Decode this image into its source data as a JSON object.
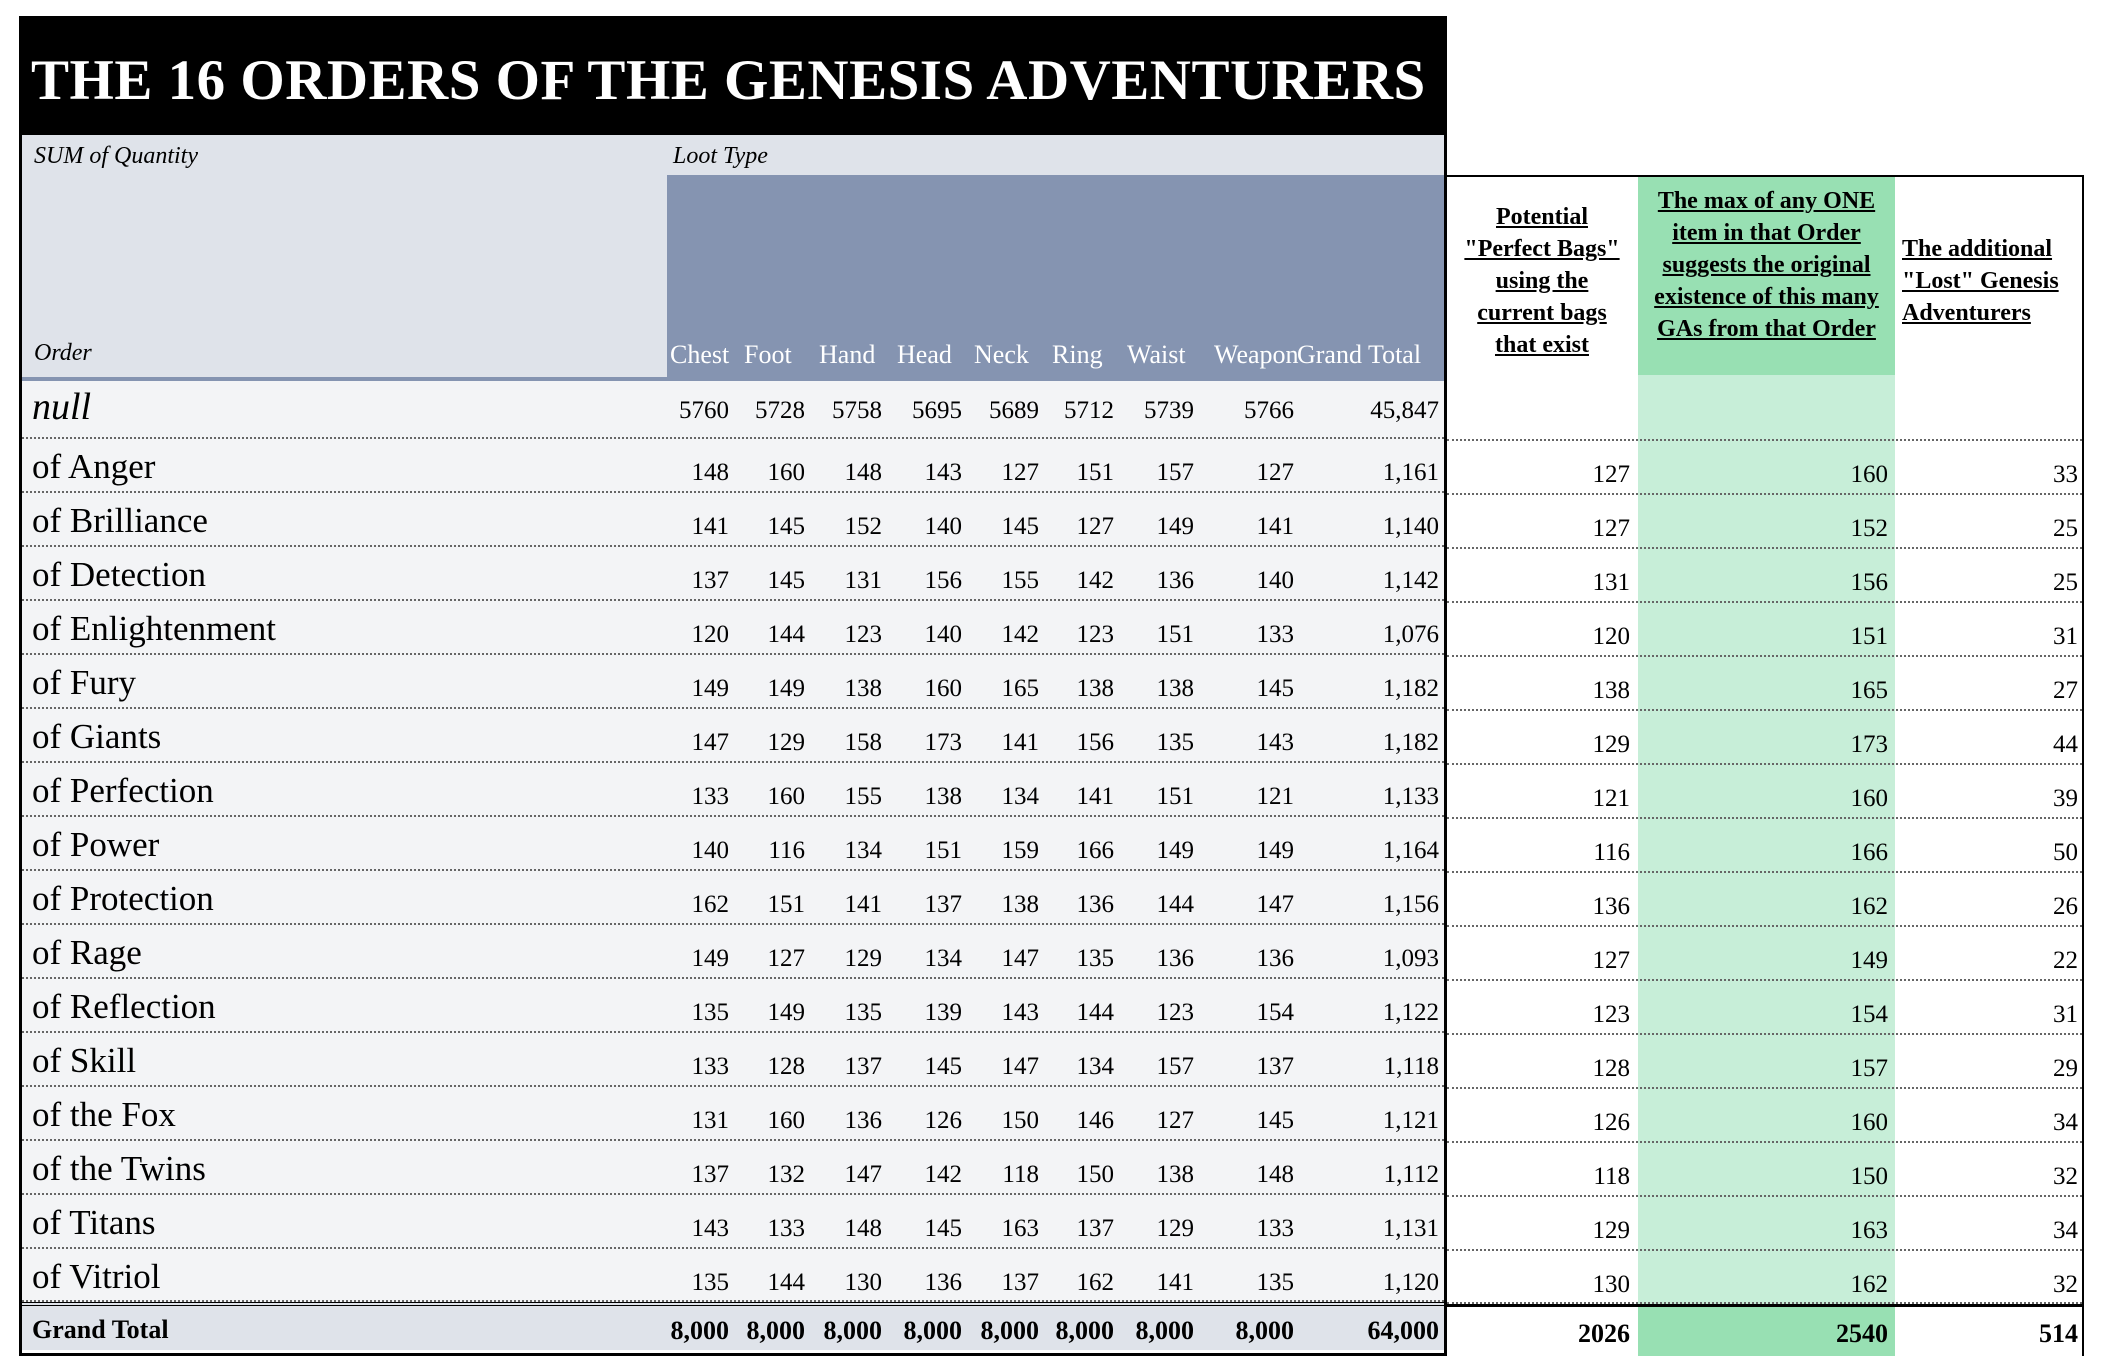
{
  "title": "THE 16 ORDERS OF THE GENESIS ADVENTURERS",
  "pivot": {
    "values_label": "SUM of Quantity",
    "columns_label": "Loot Type",
    "rows_label": "Order",
    "columns": [
      "Chest",
      "Foot",
      "Hand",
      "Head",
      "Neck",
      "Ring",
      "Waist",
      "Weapon",
      "Grand Total"
    ],
    "rows": [
      {
        "order": "null",
        "values": [
          "5760",
          "5728",
          "5758",
          "5695",
          "5689",
          "5712",
          "5739",
          "5766",
          "45,847"
        ]
      },
      {
        "order": "of Anger",
        "values": [
          "148",
          "160",
          "148",
          "143",
          "127",
          "151",
          "157",
          "127",
          "1,161"
        ]
      },
      {
        "order": "of Brilliance",
        "values": [
          "141",
          "145",
          "152",
          "140",
          "145",
          "127",
          "149",
          "141",
          "1,140"
        ]
      },
      {
        "order": "of Detection",
        "values": [
          "137",
          "145",
          "131",
          "156",
          "155",
          "142",
          "136",
          "140",
          "1,142"
        ]
      },
      {
        "order": "of Enlightenment",
        "values": [
          "120",
          "144",
          "123",
          "140",
          "142",
          "123",
          "151",
          "133",
          "1,076"
        ]
      },
      {
        "order": "of Fury",
        "values": [
          "149",
          "149",
          "138",
          "160",
          "165",
          "138",
          "138",
          "145",
          "1,182"
        ]
      },
      {
        "order": "of Giants",
        "values": [
          "147",
          "129",
          "158",
          "173",
          "141",
          "156",
          "135",
          "143",
          "1,182"
        ]
      },
      {
        "order": "of Perfection",
        "values": [
          "133",
          "160",
          "155",
          "138",
          "134",
          "141",
          "151",
          "121",
          "1,133"
        ]
      },
      {
        "order": "of Power",
        "values": [
          "140",
          "116",
          "134",
          "151",
          "159",
          "166",
          "149",
          "149",
          "1,164"
        ]
      },
      {
        "order": "of Protection",
        "values": [
          "162",
          "151",
          "141",
          "137",
          "138",
          "136",
          "144",
          "147",
          "1,156"
        ]
      },
      {
        "order": "of Rage",
        "values": [
          "149",
          "127",
          "129",
          "134",
          "147",
          "135",
          "136",
          "136",
          "1,093"
        ]
      },
      {
        "order": "of Reflection",
        "values": [
          "135",
          "149",
          "135",
          "139",
          "143",
          "144",
          "123",
          "154",
          "1,122"
        ]
      },
      {
        "order": "of Skill",
        "values": [
          "133",
          "128",
          "137",
          "145",
          "147",
          "134",
          "157",
          "137",
          "1,118"
        ]
      },
      {
        "order": "of the Fox",
        "values": [
          "131",
          "160",
          "136",
          "126",
          "150",
          "146",
          "127",
          "145",
          "1,121"
        ]
      },
      {
        "order": "of the Twins",
        "values": [
          "137",
          "132",
          "147",
          "142",
          "118",
          "150",
          "138",
          "148",
          "1,112"
        ]
      },
      {
        "order": "of Titans",
        "values": [
          "143",
          "133",
          "148",
          "145",
          "163",
          "137",
          "129",
          "133",
          "1,131"
        ]
      },
      {
        "order": "of Vitriol",
        "values": [
          "135",
          "144",
          "130",
          "136",
          "137",
          "162",
          "141",
          "135",
          "1,120"
        ]
      }
    ],
    "grand_total": {
      "label": "Grand Total",
      "values": [
        "8,000",
        "8,000",
        "8,000",
        "8,000",
        "8,000",
        "8,000",
        "8,000",
        "8,000",
        "64,000"
      ]
    }
  },
  "side": {
    "headers": [
      "Potential \"Perfect Bags\" using the current bags that exist",
      "The max of any ONE item in that Order suggests the original existence of this many GAs from that Order",
      "The additional \"Lost\" Genesis Adventurers"
    ],
    "rows": [
      [
        "",
        "",
        ""
      ],
      [
        "127",
        "160",
        "33"
      ],
      [
        "127",
        "152",
        "25"
      ],
      [
        "131",
        "156",
        "25"
      ],
      [
        "120",
        "151",
        "31"
      ],
      [
        "138",
        "165",
        "27"
      ],
      [
        "129",
        "173",
        "44"
      ],
      [
        "121",
        "160",
        "39"
      ],
      [
        "116",
        "166",
        "50"
      ],
      [
        "136",
        "162",
        "26"
      ],
      [
        "127",
        "149",
        "22"
      ],
      [
        "123",
        "154",
        "31"
      ],
      [
        "128",
        "157",
        "29"
      ],
      [
        "126",
        "160",
        "34"
      ],
      [
        "118",
        "150",
        "32"
      ],
      [
        "129",
        "163",
        "34"
      ],
      [
        "130",
        "162",
        "32"
      ]
    ],
    "totals": [
      "2026",
      "2540",
      "514"
    ]
  },
  "colors": {
    "title_bg": "#000000",
    "header_gray": "#dfe3ea",
    "header_blue": "#8594b1",
    "row_bg": "#f3f4f6",
    "green_light": "#c7eed8",
    "green_dark": "#98e0b3"
  }
}
